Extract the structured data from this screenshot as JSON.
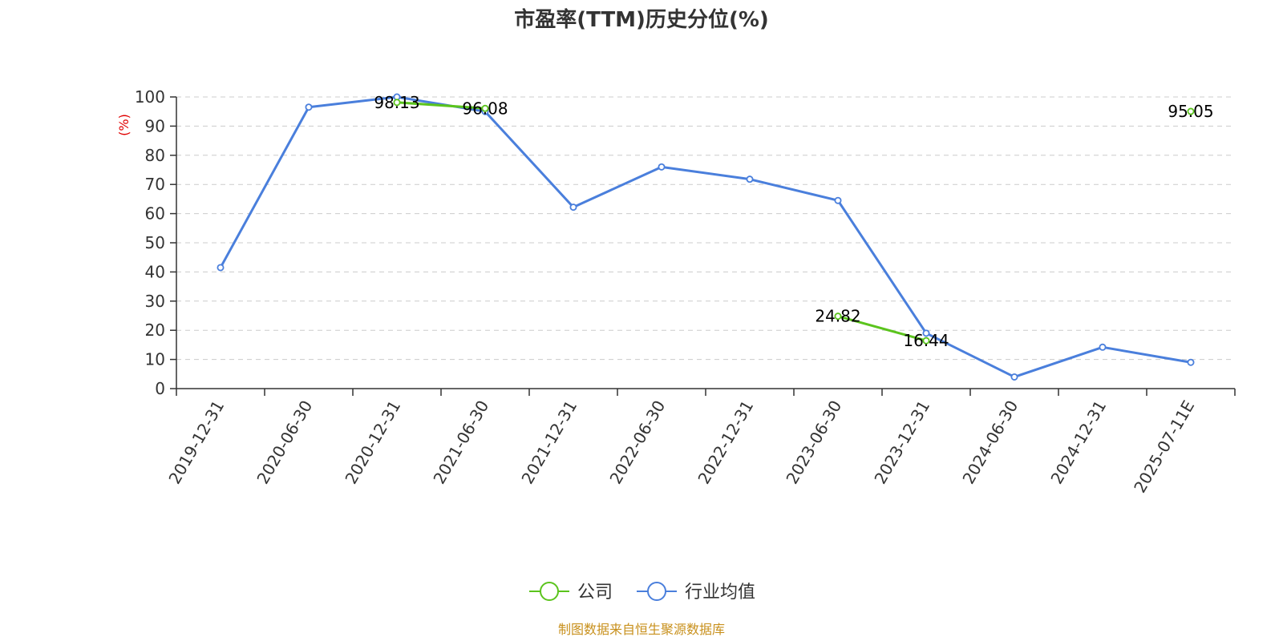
{
  "chart_data": {
    "type": "line",
    "title": "市盈率(TTM)历史分位(%)",
    "ylabel": "(%)",
    "ylim": [
      0,
      100
    ],
    "yticks": [
      0,
      10,
      20,
      30,
      40,
      50,
      60,
      70,
      80,
      90,
      100
    ],
    "grid": true,
    "legend_position": "bottom-center",
    "categories": [
      "2019-12-31",
      "2020-06-30",
      "2020-12-31",
      "2021-06-30",
      "2021-12-31",
      "2022-06-30",
      "2022-12-31",
      "2023-06-30",
      "2023-12-31",
      "2024-06-30",
      "2024-12-31",
      "2025-07-11E"
    ],
    "series": [
      {
        "name": "公司",
        "color": "#5bc41d",
        "values": [
          null,
          null,
          98.13,
          96.08,
          null,
          null,
          null,
          24.82,
          16.44,
          null,
          null,
          95.05
        ],
        "labels": [
          null,
          null,
          "98.13",
          "96.08",
          null,
          null,
          null,
          "24.82",
          "16.44",
          null,
          null,
          "95.05"
        ]
      },
      {
        "name": "行业均值",
        "color": "#4a7fdc",
        "values": [
          41.5,
          96.5,
          100,
          95,
          62.2,
          76,
          71.8,
          64.5,
          19,
          4,
          14.2,
          9
        ]
      }
    ],
    "source": "制图数据来自恒生聚源数据库"
  }
}
